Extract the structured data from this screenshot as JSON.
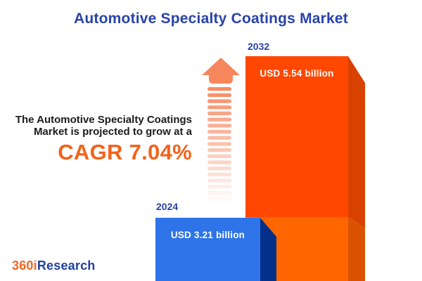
{
  "title": "Automotive Specialty Coatings Market",
  "description": {
    "line1": "The Automotive Specialty Coatings",
    "line2": "Market is projected to grow at a",
    "cagr_label": "CAGR 7.04%"
  },
  "bars": [
    {
      "year": "2024",
      "value_label": "USD 3.21 billion"
    },
    {
      "year": "2032",
      "value_label": "USD 5.54 billion"
    }
  ],
  "logo": {
    "part1": "360i",
    "part2": "Research"
  },
  "colors": {
    "title_blue": "#2843A8",
    "year_label_blue": "#2843A8",
    "body_text": "#1B1B1B",
    "cagr_orange": "#F4621A",
    "orange_bar_face_top": "#FF4700",
    "orange_bar_side_top": "#D94100",
    "orange_bar_face_bottom": "#FF6600",
    "orange_bar_side_bottom": "#DB5300",
    "blue_bar_face": "#2E74E8",
    "blue_bar_side": "#04308A",
    "growth_arrow": "#F6865C",
    "logo_orange": "#F26522",
    "logo_blue": "#21409F"
  },
  "chart_data": {
    "type": "bar",
    "title": "Automotive Specialty Coatings Market",
    "categories": [
      "2024",
      "2032"
    ],
    "values": [
      3.21,
      5.54
    ],
    "unit": "USD billion",
    "data_labels": [
      "USD 3.21 billion",
      "USD 5.54 billion"
    ],
    "cagr_percent": 7.04,
    "annotation": "The Automotive Specialty Coatings Market is projected to grow at a CAGR 7.04%",
    "legend": "none",
    "grid": false,
    "axes_shown": false,
    "style": "3d-bars, orange 2032 bar behind blue 2024 bar, dashed upward growth arrow"
  }
}
